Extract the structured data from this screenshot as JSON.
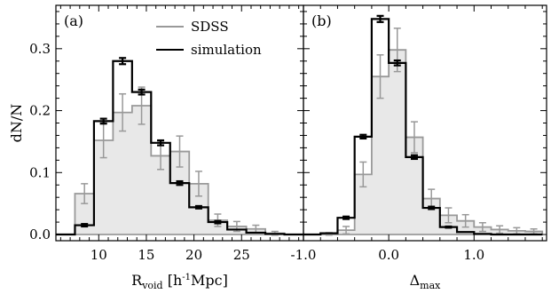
{
  "chart_data": [
    {
      "type": "histogram",
      "panel_label": "(a)",
      "ylabel": "dN/N",
      "xlabel": {
        "main": "R",
        "sub": "void",
        "unit_pre": " [h",
        "unit_sup": "-1",
        "unit_post": "Mpc]"
      },
      "xlim": [
        5.5,
        31.5
      ],
      "ylim": [
        -0.01,
        0.37
      ],
      "xticks": [
        10,
        15,
        20,
        25
      ],
      "xtick_labels": [
        "10",
        "15",
        "20",
        "25"
      ],
      "yticks": [
        0.0,
        0.1,
        0.2,
        0.3
      ],
      "ytick_labels": [
        "0.0",
        "0.1",
        "0.2",
        "0.3"
      ],
      "grid": false,
      "legend_position": "top-center",
      "bin_edges": [
        5.5,
        7.5,
        9.5,
        11.5,
        13.5,
        15.5,
        17.5,
        19.5,
        21.5,
        23.5,
        25.5,
        27.5,
        29.5,
        31.5
      ],
      "series": [
        {
          "name": "SDSS",
          "color": "#999999",
          "style": "filled-step",
          "values": [
            0.0,
            0.066,
            0.152,
            0.197,
            0.208,
            0.127,
            0.134,
            0.082,
            0.023,
            0.013,
            0.009,
            0.002,
            0.0
          ],
          "errors": [
            0.0,
            0.016,
            0.028,
            0.03,
            0.03,
            0.022,
            0.025,
            0.02,
            0.01,
            0.008,
            0.006,
            0.003,
            0.0
          ]
        },
        {
          "name": "simulation",
          "color": "#000000",
          "style": "step",
          "values": [
            0.0,
            0.015,
            0.183,
            0.28,
            0.23,
            0.148,
            0.083,
            0.044,
            0.02,
            0.008,
            0.003,
            0.001,
            0.0
          ],
          "errors": [
            0.0,
            0.002,
            0.004,
            0.005,
            0.004,
            0.004,
            0.003,
            0.002,
            0.002,
            0.0,
            0.0,
            0.0,
            0.0
          ]
        }
      ]
    },
    {
      "type": "histogram",
      "panel_label": "(b)",
      "xlabel": {
        "main": "Δ",
        "sub": "max"
      },
      "xlim": [
        -1.0,
        1.85
      ],
      "ylim": [
        -0.01,
        0.37
      ],
      "xticks": [
        -1.0,
        0.0,
        1.0
      ],
      "xtick_labels": [
        "-1.0",
        "0.0",
        "1.0"
      ],
      "grid": false,
      "bin_edges": [
        -1.0,
        -0.8,
        -0.6,
        -0.4,
        -0.2,
        0.0,
        0.2,
        0.4,
        0.6,
        0.8,
        1.0,
        1.2,
        1.4,
        1.6,
        1.8
      ],
      "series": [
        {
          "name": "SDSS",
          "color": "#999999",
          "style": "filled-step",
          "values": [
            0.0,
            0.001,
            0.007,
            0.097,
            0.255,
            0.298,
            0.157,
            0.058,
            0.031,
            0.022,
            0.012,
            0.008,
            0.006,
            0.005
          ],
          "errors": [
            0.0,
            0.002,
            0.006,
            0.02,
            0.035,
            0.035,
            0.025,
            0.015,
            0.012,
            0.01,
            0.007,
            0.006,
            0.005,
            0.004
          ]
        },
        {
          "name": "simulation",
          "color": "#000000",
          "style": "step",
          "values": [
            0.0,
            0.002,
            0.027,
            0.158,
            0.348,
            0.277,
            0.125,
            0.043,
            0.012,
            0.004,
            0.001,
            0.0,
            0.0,
            0.0
          ],
          "errors": [
            0.0,
            0.0,
            0.002,
            0.003,
            0.005,
            0.004,
            0.003,
            0.002,
            0.001,
            0.0,
            0.0,
            0.0,
            0.0,
            0.0
          ]
        }
      ]
    }
  ]
}
